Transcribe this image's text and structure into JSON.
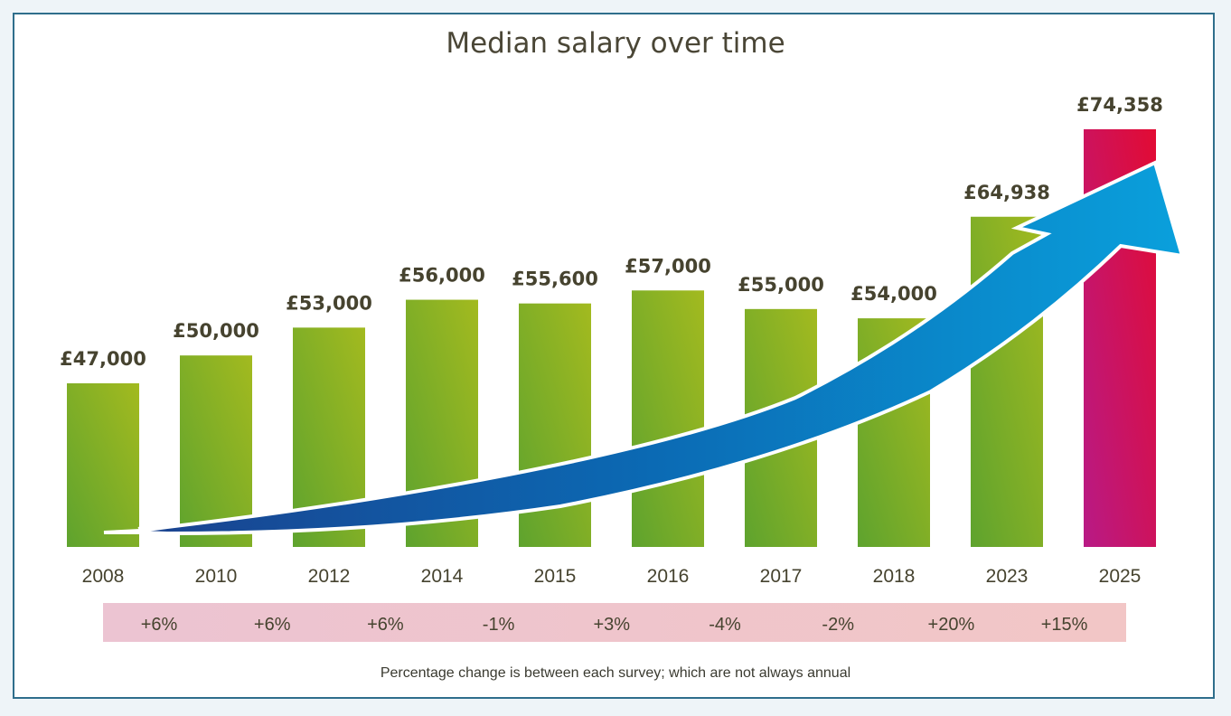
{
  "chart_data": {
    "type": "bar",
    "title": "Median salary over time",
    "categories": [
      "2008",
      "2010",
      "2012",
      "2014",
      "2015",
      "2016",
      "2017",
      "2018",
      "2023",
      "2025"
    ],
    "values": [
      47000,
      50000,
      53000,
      56000,
      55600,
      57000,
      55000,
      54000,
      64938,
      74358
    ],
    "data_labels": [
      "£47,000",
      "£50,000",
      "£53,000",
      "£56,000",
      "£55,600",
      "£57,000",
      "£55,000",
      "£54,000",
      "£64,938",
      "£74,358"
    ],
    "percent_changes": [
      "+6%",
      "+6%",
      "+6%",
      "-1%",
      "+3%",
      "-4%",
      "-2%",
      "+20%",
      "+15%"
    ],
    "note": "Percentage change is between each survey; which are not always annual",
    "colors": {
      "bars": "#8ab828",
      "highlight": "#d8104a",
      "arrow": "#0a8fd0",
      "strip": "#edc3cc",
      "frame": "#2f6e8c"
    },
    "highlight_index": 9,
    "grid": false,
    "legend": "none",
    "xlabel": "",
    "ylabel": ""
  }
}
